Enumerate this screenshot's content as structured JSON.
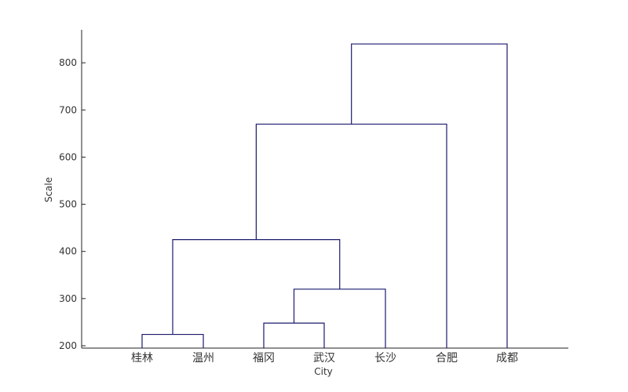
{
  "chart_data": {
    "type": "dendrogram",
    "title": "",
    "xlabel": "City",
    "ylabel": "Scale",
    "ylim": [
      195,
      870
    ],
    "yticks": [
      200,
      300,
      400,
      500,
      600,
      700,
      800
    ],
    "leaves": [
      "桂林",
      "温州",
      "福冈",
      "武汉",
      "长沙",
      "合肥",
      "成都"
    ],
    "merges": [
      {
        "left": "L0",
        "right": "L1",
        "height": 224,
        "id": "M1"
      },
      {
        "left": "L2",
        "right": "L3",
        "height": 248,
        "id": "M2"
      },
      {
        "left": "M2",
        "right": "L4",
        "height": 320,
        "id": "M3"
      },
      {
        "left": "M1",
        "right": "M3",
        "height": 425,
        "id": "M4"
      },
      {
        "left": "M4",
        "right": "L5",
        "height": 670,
        "id": "M5"
      },
      {
        "left": "M5",
        "right": "L6",
        "height": 840,
        "id": "M6"
      }
    ],
    "line_color": "#1a1a6e",
    "axis_color": "#222222"
  }
}
